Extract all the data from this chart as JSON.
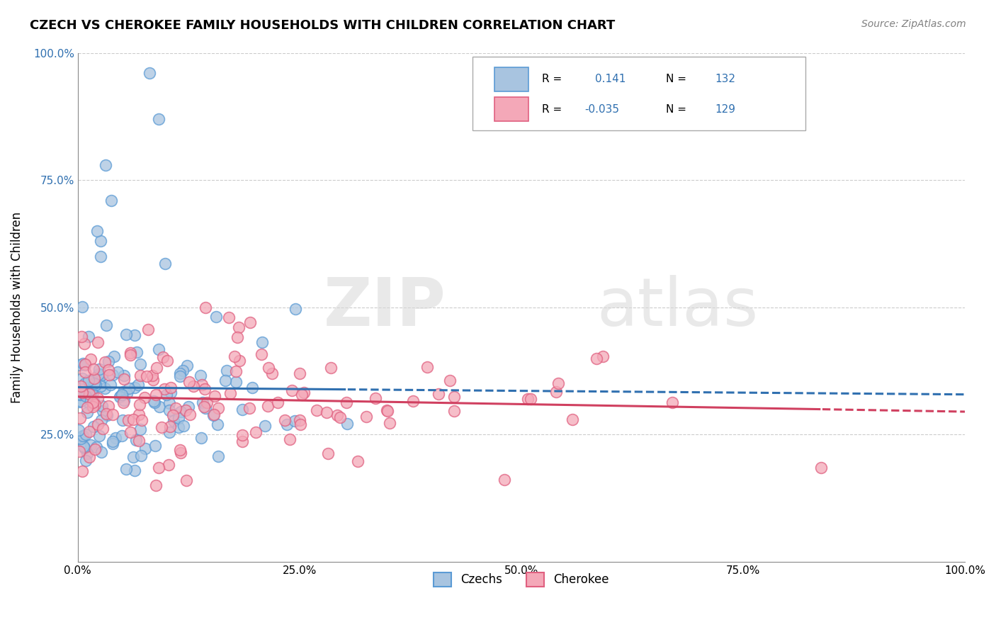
{
  "title": "CZECH VS CHEROKEE FAMILY HOUSEHOLDS WITH CHILDREN CORRELATION CHART",
  "source": "Source: ZipAtlas.com",
  "xlabel": "",
  "ylabel": "Family Households with Children",
  "xlim": [
    0.0,
    1.0
  ],
  "ylim": [
    0.0,
    1.0
  ],
  "xticks": [
    0.0,
    0.25,
    0.5,
    0.75,
    1.0
  ],
  "xtick_labels": [
    "0.0%",
    "25.0%",
    "50.0%",
    "75.0%",
    "100.0%"
  ],
  "ytick_labels": [
    "25.0%",
    "50.0%",
    "75.0%",
    "100.0%"
  ],
  "yticks": [
    0.25,
    0.5,
    0.75,
    1.0
  ],
  "czech_color": "#a8c4e0",
  "cherokee_color": "#f4a8b8",
  "czech_edge_color": "#5b9bd5",
  "cherokee_edge_color": "#e06080",
  "trend_czech_color": "#3070b0",
  "trend_cherokee_color": "#d04060",
  "watermark_zip": "ZIP",
  "watermark_atlas": "atlas",
  "legend_r_czech": "0.141",
  "legend_n_czech": "132",
  "legend_r_cherokee": "-0.035",
  "legend_n_cherokee": "129"
}
